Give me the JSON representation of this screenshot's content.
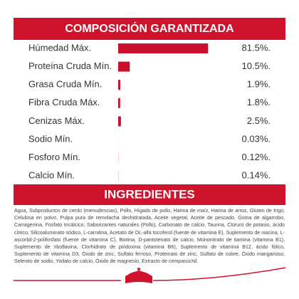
{
  "chart_data": {
    "type": "bar",
    "title": "COMPOSICIÓN GARANTIZADA",
    "categories": [
      "Húmedad Máx.",
      "Proteína Cruda Mín.",
      "Grasa Cruda Mín.",
      "Fibra Cruda Máx.",
      "Cenizas Máx.",
      "Sodio Mín.",
      "Fosforo Mín.",
      "Calcio Mín."
    ],
    "values": [
      81.5,
      10.5,
      1.9,
      1.8,
      2.5,
      0.03,
      0.12,
      0.14
    ],
    "value_labels": [
      "81.5%.",
      "10.5%.",
      "1.9%.",
      "1.8%.",
      "2.5%.",
      "0.03%.",
      "0.12%.",
      "0.14%."
    ],
    "color": "#c8102e"
  },
  "ingredients": {
    "title": "INGREDIENTES",
    "text": "Agua, Subproductos de cerdo (menudencias), Pollo, Hígado de pollo, Harina de maíz, Harina de arroz, Gluten de trigo, Celulosa en polvo, Pulpa pura de remolacha deshidratada, Aceite vegetal, Aceite de pescado, Goma de algarrobo, Carragenina, Fosfato tricálcico, Saborizantes naturales (Pollo), Carbonato de calcio, Taurina, Cloruro de potasio, ácido cítrico, Silicoaluminato sódico, L-carnitina, Acetato de DL-alfa tocoferol (fuente de vitamina E), Suplemento de niacina, L-ascorbil-2-polifosfato (fuente de vitamina C), Biotina, D-pantotenato de calcio, Mononitrato de tiamina (vitamina B1), Suplemento de riboflavina, Clorhidrato de piridoxina (vitamina B6), Suplemento de vitamina B12, ácido fólico, Suplemento de vitamina D3, Óxido de zinc, Sulfato ferroso, Proteinato de zinc, Sulfato de cobre, Óxido manganoso, Selenito de sodio, Yodato de calcio, Óxido de magnesio, Extracto de cempasúchil."
  }
}
